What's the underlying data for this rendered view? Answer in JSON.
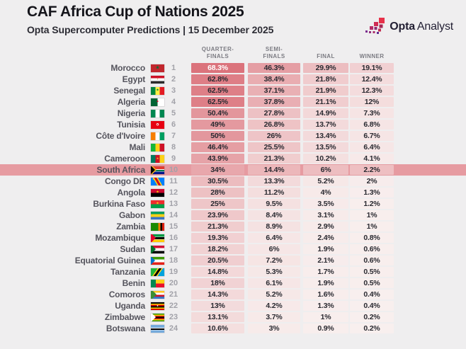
{
  "header": {
    "title": "CAF Africa Cup of Nations 2025",
    "subtitle": "Opta Supercomputer Predictions | 15 December 2025"
  },
  "brand": {
    "name_bold": "Opta",
    "name_light": "Analyst"
  },
  "table": {
    "column_headers": [
      "QUARTER-\nFINALS",
      "SEMI-\nFINALS",
      "FINAL",
      "WINNER"
    ],
    "highlighted_team": "South Africa",
    "unit": "%"
  },
  "colors": {
    "background": "#efeeef",
    "highlight_band": "#e69ba1",
    "cell_scale_low": "#f8efee",
    "cell_scale_high": "#db737c",
    "cell_text_dark": "#2a2a31",
    "cell_text_light": "#ffffff",
    "brand_navy": "#221f33",
    "accent_red": "#e73149"
  },
  "chart_data": {
    "type": "table",
    "title": "CAF Africa Cup of Nations 2025",
    "subtitle": "Opta Supercomputer Predictions | 15 December 2025",
    "columns": [
      "Quarter-finals",
      "Semi-finals",
      "Final",
      "Winner"
    ],
    "unit": "%",
    "value_scale": {
      "min": 0,
      "max": 68.3,
      "low_color": "#f8efee",
      "high_color": "#db737c"
    },
    "rows": [
      {
        "rank": 1,
        "team": "Morocco",
        "flag": "morocco-flag-icon",
        "values": [
          68.3,
          46.3,
          29.9,
          19.1
        ]
      },
      {
        "rank": 2,
        "team": "Egypt",
        "flag": "egypt-flag-icon",
        "values": [
          62.8,
          38.4,
          21.8,
          12.4
        ]
      },
      {
        "rank": 3,
        "team": "Senegal",
        "flag": "senegal-flag-icon",
        "values": [
          62.5,
          37.1,
          21.9,
          12.3
        ]
      },
      {
        "rank": 4,
        "team": "Algeria",
        "flag": "algeria-flag-icon",
        "values": [
          62.5,
          37.8,
          21.1,
          12
        ]
      },
      {
        "rank": 5,
        "team": "Nigeria",
        "flag": "nigeria-flag-icon",
        "values": [
          50.4,
          27.8,
          14.9,
          7.3
        ]
      },
      {
        "rank": 6,
        "team": "Tunisia",
        "flag": "tunisia-flag-icon",
        "values": [
          49,
          26.8,
          13.7,
          6.8
        ]
      },
      {
        "rank": 7,
        "team": "Côte d'Ivoire",
        "flag": "cote-divoire-flag-icon",
        "values": [
          50,
          26,
          13.4,
          6.7
        ]
      },
      {
        "rank": 8,
        "team": "Mali",
        "flag": "mali-flag-icon",
        "values": [
          46.4,
          25.5,
          13.5,
          6.4
        ]
      },
      {
        "rank": 9,
        "team": "Cameroon",
        "flag": "cameroon-flag-icon",
        "values": [
          43.9,
          21.3,
          10.2,
          4.1
        ]
      },
      {
        "rank": 10,
        "team": "South Africa",
        "flag": "south-africa-flag-icon",
        "values": [
          34,
          14.4,
          6,
          2.2
        ],
        "highlighted": true
      },
      {
        "rank": 11,
        "team": "Congo DR",
        "flag": "congo-dr-flag-icon",
        "values": [
          30.5,
          13.3,
          5.2,
          2
        ]
      },
      {
        "rank": 12,
        "team": "Angola",
        "flag": "angola-flag-icon",
        "values": [
          28,
          11.2,
          4,
          1.3
        ]
      },
      {
        "rank": 13,
        "team": "Burkina Faso",
        "flag": "burkina-faso-flag-icon",
        "values": [
          25,
          9.5,
          3.5,
          1.2
        ]
      },
      {
        "rank": 14,
        "team": "Gabon",
        "flag": "gabon-flag-icon",
        "values": [
          23.9,
          8.4,
          3.1,
          1
        ]
      },
      {
        "rank": 15,
        "team": "Zambia",
        "flag": "zambia-flag-icon",
        "values": [
          21.3,
          8.9,
          2.9,
          1
        ]
      },
      {
        "rank": 16,
        "team": "Mozambique",
        "flag": "mozambique-flag-icon",
        "values": [
          19.3,
          6.4,
          2.4,
          0.8
        ]
      },
      {
        "rank": 17,
        "team": "Sudan",
        "flag": "sudan-flag-icon",
        "values": [
          18.2,
          6,
          1.9,
          0.6
        ]
      },
      {
        "rank": 18,
        "team": "Equatorial Guinea",
        "flag": "equatorial-guinea-flag-icon",
        "values": [
          20.5,
          7.2,
          2.1,
          0.6
        ]
      },
      {
        "rank": 19,
        "team": "Tanzania",
        "flag": "tanzania-flag-icon",
        "values": [
          14.8,
          5.3,
          1.7,
          0.5
        ]
      },
      {
        "rank": 20,
        "team": "Benin",
        "flag": "benin-flag-icon",
        "values": [
          18,
          6.1,
          1.9,
          0.5
        ]
      },
      {
        "rank": 21,
        "team": "Comoros",
        "flag": "comoros-flag-icon",
        "values": [
          14.3,
          5.2,
          1.6,
          0.4
        ]
      },
      {
        "rank": 22,
        "team": "Uganda",
        "flag": "uganda-flag-icon",
        "values": [
          13,
          4.2,
          1.3,
          0.4
        ]
      },
      {
        "rank": 23,
        "team": "Zimbabwe",
        "flag": "zimbabwe-flag-icon",
        "values": [
          13.1,
          3.7,
          1,
          0.2
        ]
      },
      {
        "rank": 24,
        "team": "Botswana",
        "flag": "botswana-flag-icon",
        "values": [
          10.6,
          3,
          0.9,
          0.2
        ]
      }
    ]
  }
}
